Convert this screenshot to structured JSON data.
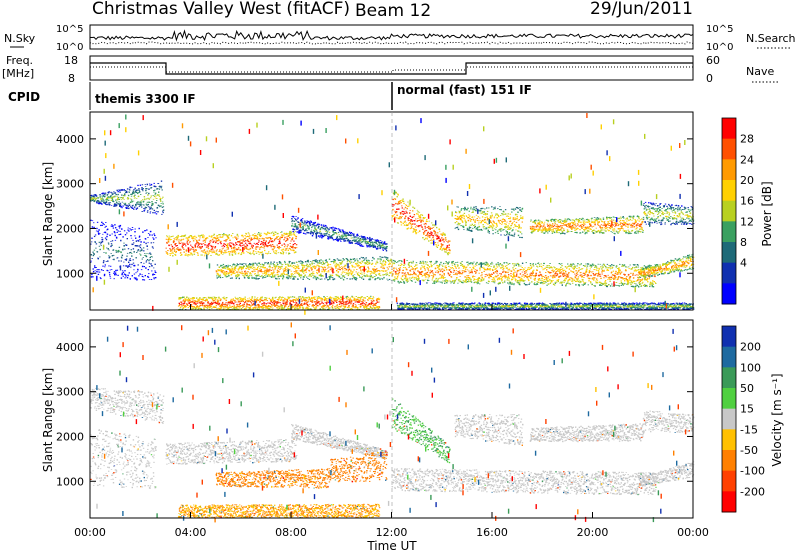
{
  "header": {
    "station": "Christmas Valley West (fitACF)",
    "beam": "Beam 12",
    "date": "29/Jun/2011"
  },
  "top_panels": {
    "nsky_label": "N.Sky",
    "nsearch_label": "N.Search",
    "left_top": "10^5",
    "left_bottom": "10^0",
    "right_top": "10^5",
    "right_bottom": "10^0",
    "freq_label": "Freq.",
    "freq_unit": "[MHz]",
    "freq_top": "18",
    "freq_bottom": "8",
    "nave_label": "Nave",
    "nave_top": "60",
    "nave_bottom": "0",
    "cpid_label": "CPID",
    "cpid_modes": [
      {
        "name": "themis 3300 IF",
        "start_hour": 0,
        "end_hour": 12
      },
      {
        "name": "normal (fast) 151 IF",
        "start_hour": 12,
        "end_hour": 24
      }
    ]
  },
  "chart_data": [
    {
      "type": "heatmap",
      "name": "power",
      "ylabel": "Slant Range [km]",
      "xlabel": "",
      "xlim": [
        0,
        24
      ],
      "ylim": [
        180,
        4600
      ],
      "x_ticks": [
        "00:00",
        "04:00",
        "08:00",
        "12:00",
        "16:00",
        "20:00",
        "00:00"
      ],
      "y_ticks": [
        1000,
        2000,
        3000,
        4000
      ],
      "colorbar": {
        "label": "Power [dB]",
        "ticks": [
          "28",
          "24",
          "20",
          "16",
          "12",
          "8",
          "4"
        ],
        "colors": [
          "#ff0000",
          "#ff5000",
          "#ff9a00",
          "#ffd000",
          "#b8d020",
          "#3aa060",
          "#1e6a78",
          "#1030b0",
          "#0000ff"
        ]
      },
      "echo_bands": [
        {
          "t0": 0.0,
          "t1": 2.9,
          "r0": 2600,
          "r1": 2750,
          "r1b": 3100,
          "r0b": 2300,
          "peak": 14
        },
        {
          "t0": 0.0,
          "t1": 2.6,
          "r0": 900,
          "r1": 2200,
          "r1b": 1950,
          "r0b": 850,
          "peak": 8
        },
        {
          "t0": 3.0,
          "t1": 8.2,
          "r0": 1380,
          "r1": 1850,
          "r1b": 1950,
          "r0b": 1450,
          "peak": 27
        },
        {
          "t0": 8.0,
          "t1": 11.8,
          "r0": 1950,
          "r1": 2300,
          "r1b": 1700,
          "r0b": 1500,
          "peak": 12
        },
        {
          "t0": 5.0,
          "t1": 12.0,
          "r0": 900,
          "r1": 1200,
          "r1b": 1400,
          "r0b": 850,
          "peak": 21
        },
        {
          "t0": 3.5,
          "t1": 11.5,
          "r0": 200,
          "r1": 480,
          "r1b": 500,
          "r0b": 200,
          "peak": 26
        },
        {
          "t0": 12.0,
          "t1": 14.3,
          "r0": 2200,
          "r1": 2900,
          "r1b": 1800,
          "r0b": 1400,
          "peak": 27
        },
        {
          "t0": 12.0,
          "t1": 22.5,
          "r0": 800,
          "r1": 1300,
          "r1b": 1200,
          "r0b": 700,
          "peak": 23
        },
        {
          "t0": 14.5,
          "t1": 17.2,
          "r0": 2000,
          "r1": 2500,
          "r1b": 2500,
          "r0b": 1800,
          "peak": 20
        },
        {
          "t0": 17.5,
          "t1": 22.0,
          "r0": 1900,
          "r1": 2200,
          "r1b": 2300,
          "r0b": 1900,
          "peak": 23
        },
        {
          "t0": 21.8,
          "t1": 24.0,
          "r0": 900,
          "r1": 1100,
          "r1b": 1450,
          "r0b": 1100,
          "peak": 22
        },
        {
          "t0": 22.0,
          "t1": 24.0,
          "r0": 2100,
          "r1": 2600,
          "r1b": 2500,
          "r0b": 2100,
          "peak": 16
        },
        {
          "t0": 12.2,
          "t1": 24.0,
          "r0": 200,
          "r1": 350,
          "r1b": 350,
          "r0b": 200,
          "peak": 14
        }
      ]
    },
    {
      "type": "heatmap",
      "name": "velocity",
      "ylabel": "Slant Range [km]",
      "xlabel": "Time UT",
      "xlim": [
        0,
        24
      ],
      "ylim": [
        180,
        4600
      ],
      "x_ticks": [
        "00:00",
        "04:00",
        "08:00",
        "12:00",
        "16:00",
        "20:00",
        "00:00"
      ],
      "y_ticks": [
        1000,
        2000,
        3000,
        4000
      ],
      "colorbar": {
        "label": "Velocity [m s⁻¹]",
        "ticks": [
          "200",
          "100",
          "50",
          "15",
          "-15",
          "-50",
          "-100",
          "-200"
        ],
        "colors": [
          "#1030b0",
          "#1e6aa0",
          "#3a9a58",
          "#50d040",
          "#c8c8c8",
          "#ffc000",
          "#ff8000",
          "#ff4000",
          "#ff0000"
        ]
      },
      "echo_bands": [
        {
          "t0": 0.0,
          "t1": 2.9,
          "r0": 2600,
          "r1": 3100,
          "r1b": 3000,
          "r0b": 2300,
          "vel": 0
        },
        {
          "t0": 0.0,
          "t1": 2.6,
          "r0": 900,
          "r1": 2200,
          "r1b": 1950,
          "r0b": 850,
          "vel": 0
        },
        {
          "t0": 3.0,
          "t1": 8.2,
          "r0": 1380,
          "r1": 1850,
          "r1b": 1950,
          "r0b": 1450,
          "vel": 0
        },
        {
          "t0": 8.0,
          "t1": 11.8,
          "r0": 1950,
          "r1": 2300,
          "r1b": 1700,
          "r0b": 1500,
          "vel": -5
        },
        {
          "t0": 5.0,
          "t1": 9.5,
          "r0": 900,
          "r1": 1200,
          "r1b": 1300,
          "r0b": 850,
          "vel": -40
        },
        {
          "t0": 9.5,
          "t1": 11.8,
          "r0": 1000,
          "r1": 1500,
          "r1b": 1700,
          "r0b": 1000,
          "vel": -60
        },
        {
          "t0": 3.5,
          "t1": 11.5,
          "r0": 200,
          "r1": 480,
          "r1b": 500,
          "r0b": 200,
          "vel": -30
        },
        {
          "t0": 12.0,
          "t1": 14.3,
          "r0": 2200,
          "r1": 2900,
          "r1b": 1800,
          "r0b": 1400,
          "vel": 30
        },
        {
          "t0": 12.0,
          "t1": 22.5,
          "r0": 800,
          "r1": 1300,
          "r1b": 1200,
          "r0b": 700,
          "vel": 0
        },
        {
          "t0": 14.5,
          "t1": 17.2,
          "r0": 2000,
          "r1": 2500,
          "r1b": 2500,
          "r0b": 1800,
          "vel": 0
        },
        {
          "t0": 17.5,
          "t1": 22.0,
          "r0": 1900,
          "r1": 2200,
          "r1b": 2300,
          "r0b": 1900,
          "vel": 0
        },
        {
          "t0": 21.8,
          "t1": 24.0,
          "r0": 900,
          "r1": 1100,
          "r1b": 1450,
          "r0b": 1100,
          "vel": 0
        },
        {
          "t0": 22.0,
          "t1": 24.0,
          "r0": 2100,
          "r1": 2600,
          "r1b": 2500,
          "r0b": 2100,
          "vel": 0
        }
      ]
    }
  ]
}
